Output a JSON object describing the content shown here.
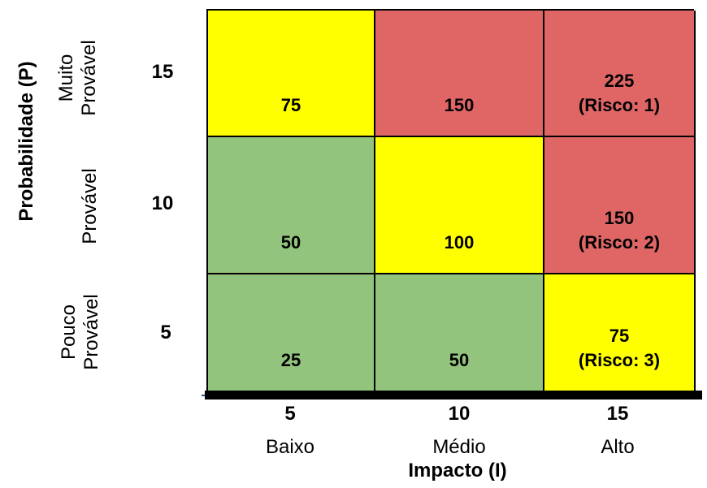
{
  "y_axis": {
    "title": "Probabilidade (P)",
    "rows": [
      {
        "value": "15",
        "label_lines": [
          "Muito",
          "Provável"
        ]
      },
      {
        "value": "10",
        "label_lines": [
          "Provável"
        ]
      },
      {
        "value": "5",
        "label_lines": [
          "Pouco",
          "Provável"
        ]
      }
    ]
  },
  "x_axis": {
    "title": "Impacto (I)",
    "columns": [
      {
        "value": "5",
        "label": "Baixo"
      },
      {
        "value": "10",
        "label": "Médio"
      },
      {
        "value": "15",
        "label": "Alto"
      }
    ]
  },
  "colors": {
    "green": "#93c47d",
    "yellow": "#ffff00",
    "red": "#e06666",
    "axis_bar": "#000000",
    "axis_line": "#2f5597"
  },
  "matrix": [
    [
      {
        "lines": [
          "75"
        ],
        "color": "yellow"
      },
      {
        "lines": [
          "150"
        ],
        "color": "red"
      },
      {
        "lines": [
          "225",
          "(Risco: 1)"
        ],
        "color": "red"
      }
    ],
    [
      {
        "lines": [
          "50"
        ],
        "color": "green"
      },
      {
        "lines": [
          "100"
        ],
        "color": "yellow"
      },
      {
        "lines": [
          "150",
          "(Risco: 2)"
        ],
        "color": "red"
      }
    ],
    [
      {
        "lines": [
          "25"
        ],
        "color": "green"
      },
      {
        "lines": [
          "50"
        ],
        "color": "green"
      },
      {
        "lines": [
          "75",
          "(Risco: 3)"
        ],
        "color": "yellow"
      }
    ]
  ]
}
